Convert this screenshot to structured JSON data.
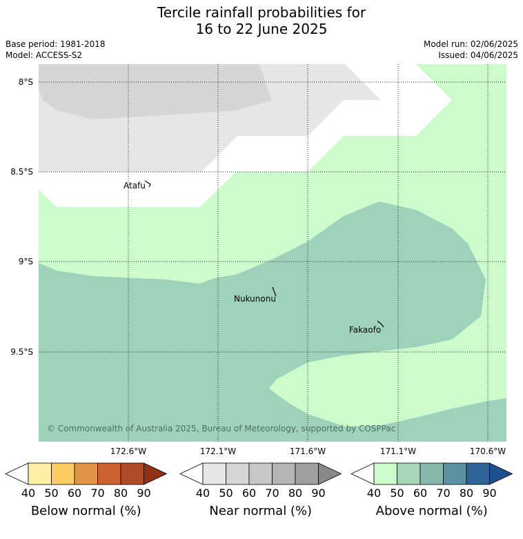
{
  "title": {
    "line1": "Tercile rainfall probabilities for",
    "line2": "16 to 22 June 2025"
  },
  "meta": {
    "base_period": "Base period: 1981-2018",
    "model": "Model: ACCESS-S2",
    "model_run": "Model run: 02/06/2025",
    "issued": "Issued: 04/06/2025"
  },
  "map": {
    "lat_labels": [
      "8°S",
      "8.5°S",
      "9°S",
      "9.5°S"
    ],
    "lon_labels": [
      "172.6°W",
      "172.1°W",
      "171.6°W",
      "171.1°W",
      "170.6°W"
    ],
    "places": [
      "Atafu",
      "Nukunonu",
      "Fakaofo"
    ],
    "copyright": "© Commonwealth of Australia 2025, Bureau of Meteorology, supported by COSPPac",
    "colors": {
      "near_normal_50": "#d6d6d6",
      "near_normal_40": "#e6e6e6",
      "above_normal_40": "#ccfccc",
      "above_normal_50": "#9fd2bb",
      "background": "#ffffff"
    }
  },
  "colorbars": [
    {
      "title": "Below normal (%)",
      "ticks": [
        "40",
        "50",
        "60",
        "70",
        "80",
        "90"
      ],
      "colors": [
        "#ffffff",
        "#fff0a6",
        "#fdcd63",
        "#e29546",
        "#cc6230",
        "#b04a26",
        "#8f3216"
      ]
    },
    {
      "title": "Near normal (%)",
      "ticks": [
        "40",
        "50",
        "60",
        "70",
        "80",
        "90"
      ],
      "colors": [
        "#ffffff",
        "#e6e6e6",
        "#d6d6d6",
        "#c7c7c7",
        "#b5b5b5",
        "#9f9f9f",
        "#888888"
      ]
    },
    {
      "title": "Above normal (%)",
      "ticks": [
        "40",
        "50",
        "60",
        "70",
        "80",
        "90"
      ],
      "colors": [
        "#ffffff",
        "#ccfccc",
        "#a6d8b7",
        "#86b8ac",
        "#5a92a1",
        "#2d6596",
        "#1c4f8c"
      ]
    }
  ]
}
